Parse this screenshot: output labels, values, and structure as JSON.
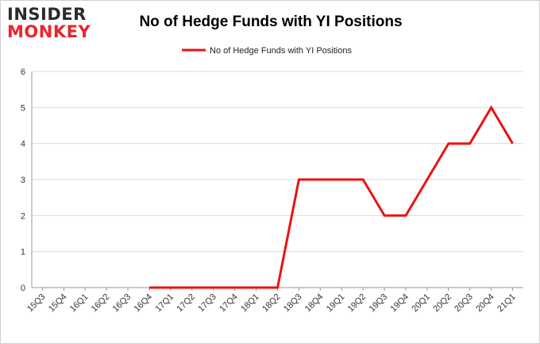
{
  "logo": {
    "line1": "INSIDER",
    "line2": "MONKEY"
  },
  "colors": {
    "series": "#ee1111",
    "grid": "#d9d9d9",
    "axis": "#999999"
  },
  "chart_data": {
    "type": "line",
    "title": "No of Hedge Funds with YI Positions",
    "xlabel": "",
    "ylabel": "",
    "ylim": [
      0,
      6
    ],
    "yticks": [
      0,
      1,
      2,
      3,
      4,
      5,
      6
    ],
    "grid": true,
    "legend_position": "top-center",
    "categories": [
      "15Q3",
      "15Q4",
      "16Q1",
      "16Q2",
      "16Q3",
      "16Q4",
      "17Q1",
      "17Q2",
      "17Q3",
      "17Q4",
      "18Q1",
      "18Q2",
      "18Q3",
      "18Q4",
      "19Q1",
      "19Q2",
      "19Q3",
      "19Q4",
      "20Q1",
      "20Q2",
      "20Q3",
      "20Q4",
      "21Q1"
    ],
    "series": [
      {
        "name": "No of Hedge Funds with YI Positions",
        "values": [
          null,
          null,
          null,
          null,
          null,
          0,
          0,
          0,
          0,
          0,
          0,
          0,
          3,
          3,
          3,
          3,
          2,
          2,
          3,
          4,
          4,
          5,
          4
        ]
      }
    ]
  }
}
